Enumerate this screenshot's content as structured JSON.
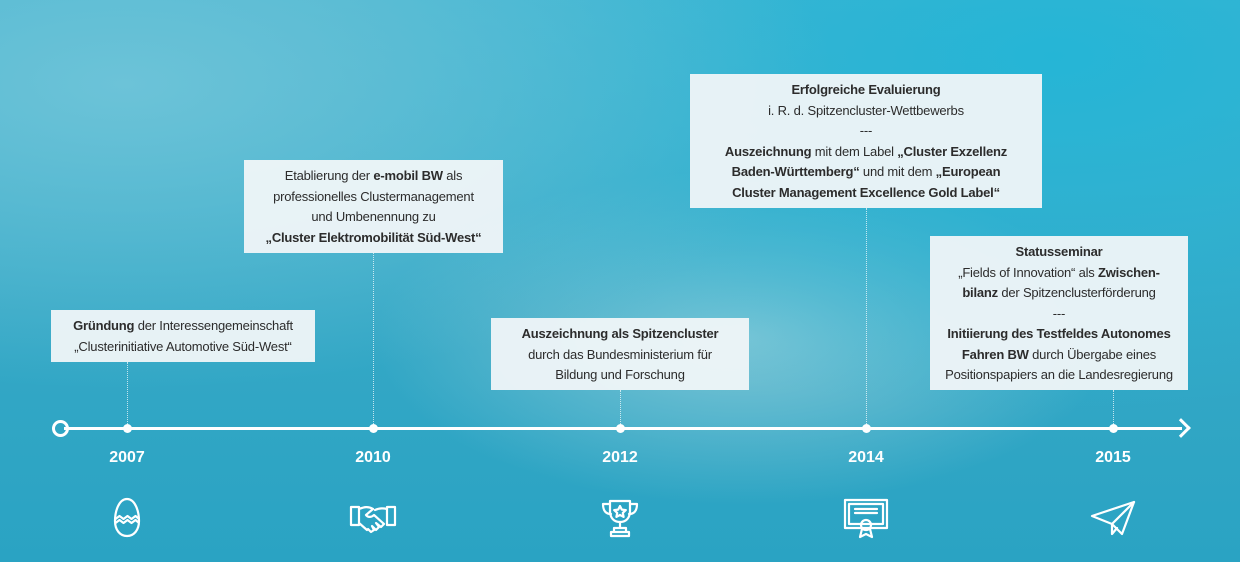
{
  "milestones": [
    {
      "year": "2007",
      "icon": "egg-icon",
      "lines": [
        [
          {
            "t": "Gründung",
            "b": true
          },
          {
            "t": " der Interessengemeinschaft",
            "b": false
          }
        ],
        [
          {
            "t": "„Clusterinitiative Automotive Süd-West“",
            "b": false
          }
        ]
      ]
    },
    {
      "year": "2010",
      "icon": "handshake-icon",
      "lines": [
        [
          {
            "t": "Etablierung der ",
            "b": false
          },
          {
            "t": "e-mobil BW",
            "b": true
          },
          {
            "t": " als",
            "b": false
          }
        ],
        [
          {
            "t": "professionelles Clustermanagement",
            "b": false
          }
        ],
        [
          {
            "t": "und Umbenennung zu",
            "b": false
          }
        ],
        [
          {
            "t": "„Cluster Elektromobilität Süd-West“",
            "b": true
          }
        ]
      ]
    },
    {
      "year": "2012",
      "icon": "trophy-icon",
      "lines": [
        [
          {
            "t": "Auszeichnung als Spitzencluster",
            "b": true
          }
        ],
        [
          {
            "t": "durch das Bundesministerium für",
            "b": false
          }
        ],
        [
          {
            "t": "Bildung und Forschung",
            "b": false
          }
        ]
      ]
    },
    {
      "year": "2014",
      "icon": "certificate-icon",
      "lines": [
        [
          {
            "t": "Erfolgreiche Evaluierung",
            "b": true
          }
        ],
        [
          {
            "t": "i. R. d. Spitzencluster-Wettbewerbs",
            "b": false
          }
        ],
        [
          {
            "t": "---",
            "b": false
          }
        ],
        [
          {
            "t": "Auszeichnung",
            "b": true
          },
          {
            "t": " mit dem Label ",
            "b": false
          },
          {
            "t": "„Cluster Exzellenz",
            "b": true
          }
        ],
        [
          {
            "t": "Baden-Württemberg“",
            "b": true
          },
          {
            "t": " und mit dem ",
            "b": false
          },
          {
            "t": "„European",
            "b": true
          }
        ],
        [
          {
            "t": "Cluster Management Excellence Gold Label“",
            "b": true
          }
        ]
      ]
    },
    {
      "year": "2015",
      "icon": "paper-plane-icon",
      "lines": [
        [
          {
            "t": "Statusseminar",
            "b": true
          }
        ],
        [
          {
            "t": "„Fields of Innovation“ als ",
            "b": false
          },
          {
            "t": "Zwischen-",
            "b": true
          }
        ],
        [
          {
            "t": "bilanz",
            "b": true
          },
          {
            "t": " der Spitzenclusterförderung",
            "b": false
          }
        ],
        [
          {
            "t": "---",
            "b": false
          }
        ],
        [
          {
            "t": "Initiierung des Testfeldes Autonomes",
            "b": true
          }
        ],
        [
          {
            "t": "Fahren BW",
            "b": true
          },
          {
            "t": " durch Übergabe eines",
            "b": false
          }
        ],
        [
          {
            "t": "Positionspapiers an die Landesregierung",
            "b": false
          }
        ]
      ]
    }
  ]
}
